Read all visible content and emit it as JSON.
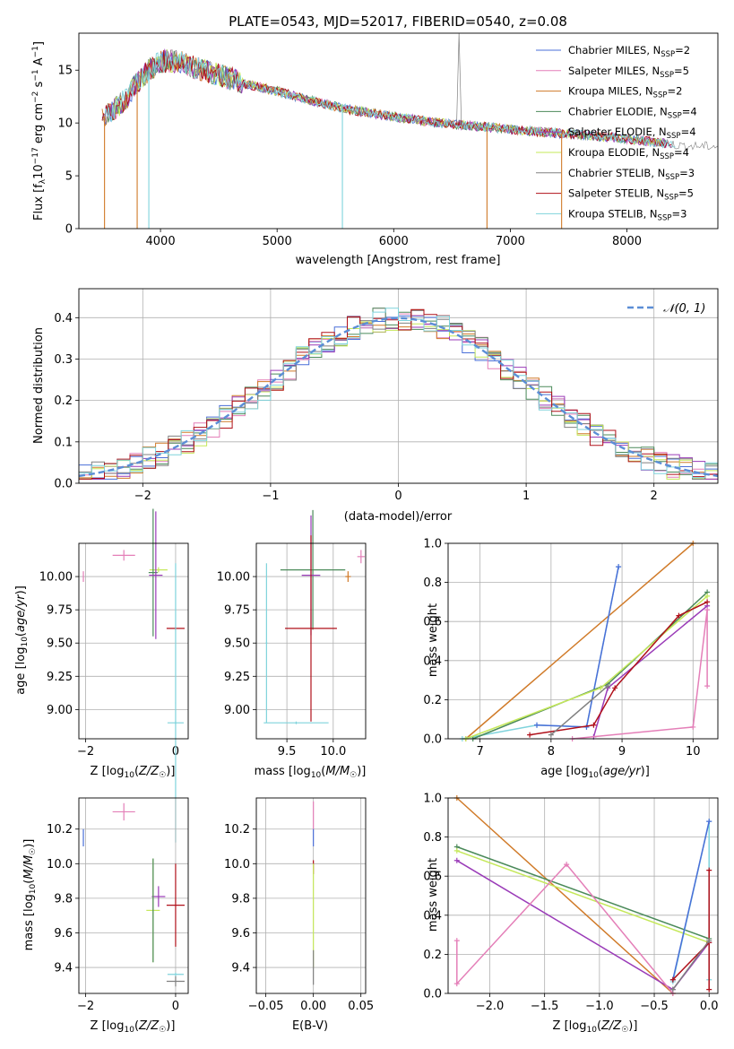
{
  "colors": {
    "chabrier_miles": "#4a6fd8",
    "salpeter_miles": "#e47fb8",
    "kroupa_miles": "#d07a28",
    "chabrier_elodie": "#4b8a5a",
    "salpeter_elodie": "#9a3bb8",
    "kroupa_elodie": "#c5e85a",
    "chabrier_stelib": "#808080",
    "salpeter_stelib": "#b0101a",
    "kroupa_stelib": "#7fd3dc",
    "normal": "#5b8ed6"
  },
  "legend1": [
    {
      "label": "Chabrier MILES, N",
      "sub": "SSP",
      "tail": "=2",
      "color": "chabrier_miles"
    },
    {
      "label": "Salpeter MILES, N",
      "sub": "SSP",
      "tail": "=5",
      "color": "salpeter_miles"
    },
    {
      "label": "Kroupa MILES, N",
      "sub": "SSP",
      "tail": "=2",
      "color": "kroupa_miles"
    },
    {
      "label": "Chabrier ELODIE, N",
      "sub": "SSP",
      "tail": "=4",
      "color": "chabrier_elodie"
    },
    {
      "label": "Salpeter ELODIE, N",
      "sub": "SSP",
      "tail": "=4",
      "color": "salpeter_elodie"
    },
    {
      "label": "Kroupa ELODIE, N",
      "sub": "SSP",
      "tail": "=4",
      "color": "kroupa_elodie"
    },
    {
      "label": "Chabrier STELIB, N",
      "sub": "SSP",
      "tail": "=3",
      "color": "chabrier_stelib"
    },
    {
      "label": "Salpeter STELIB, N",
      "sub": "SSP",
      "tail": "=5",
      "color": "salpeter_stelib"
    },
    {
      "label": "Kroupa STELIB, N",
      "sub": "SSP",
      "tail": "=3",
      "color": "kroupa_stelib"
    }
  ],
  "legend2": {
    "label": "𝒩(0, 1)"
  },
  "chart_data": [
    {
      "id": "spectrum",
      "type": "line",
      "title": "PLATE=0543, MJD=52017, FIBERID=0540, z=0.08",
      "xlabel": "wavelength [Angstrom, rest frame]",
      "ylabel": "Flux [f_λ 10^-17 erg cm^-2 s^-1 A^-1]",
      "xlim": [
        3300,
        8780
      ],
      "ylim": [
        0,
        18.5
      ],
      "xticks": [
        4000,
        5000,
        6000,
        7000,
        8000
      ],
      "yticks": [
        0,
        5,
        10,
        15
      ],
      "grid": false,
      "legend": "upper right",
      "continuum": {
        "x": [
          3500,
          3600,
          3700,
          3800,
          3900,
          4000,
          4100,
          4200,
          4300,
          4500,
          4700,
          5000,
          5300,
          5600,
          6000,
          6400,
          6800,
          7200,
          7600,
          8000,
          8300,
          8500
        ],
        "y": [
          10.5,
          11.3,
          12.2,
          13.8,
          15.0,
          15.8,
          15.9,
          15.7,
          15.2,
          14.6,
          13.8,
          13.0,
          12.1,
          11.3,
          10.6,
          10.0,
          9.6,
          9.2,
          8.9,
          8.5,
          8.1,
          7.8
        ]
      }
    },
    {
      "id": "residuals",
      "type": "line",
      "xlabel": "(data-model)/error",
      "ylabel": "Normed distribution",
      "xlim": [
        -2.5,
        2.5
      ],
      "ylim": [
        0,
        0.47
      ],
      "xticks": [
        -2,
        -1,
        0,
        1,
        2
      ],
      "yticks": [
        0.0,
        0.1,
        0.2,
        0.3,
        0.4
      ],
      "grid": true,
      "legend": "upper right",
      "series": [
        {
          "name": "𝒩(0, 1)",
          "mu": 0,
          "sigma": 1
        }
      ]
    },
    {
      "id": "age_vs_z",
      "type": "scatter",
      "xlabel": "Z [log10(Z/Z☉)]",
      "ylabel": "age [log10(age/yr)]",
      "xlim": [
        -2.15,
        0.28
      ],
      "ylim": [
        8.78,
        10.25
      ],
      "xticks": [
        -2,
        0
      ],
      "yticks": [
        9.0,
        9.25,
        9.5,
        9.75,
        10.0
      ],
      "grid": true,
      "errorbars": [
        {
          "c": "salpeter_miles",
          "x": -2.05,
          "y": 10.0,
          "xe": 0.01,
          "ye": 0.04
        },
        {
          "c": "salpeter_miles",
          "x": -1.15,
          "y": 10.16,
          "xe": 0.25,
          "ye": 0.04
        },
        {
          "c": "kroupa_elodie",
          "x": -0.38,
          "y": 10.05,
          "xe": 0.2,
          "ye": 0.02
        },
        {
          "c": "chabrier_elodie",
          "x": -0.5,
          "y": 10.03,
          "xe": 0.1,
          "ye": 0.48
        },
        {
          "c": "salpeter_elodie",
          "x": -0.44,
          "y": 10.01,
          "xe": 0.15,
          "ye": 0.48
        },
        {
          "c": "salpeter_stelib",
          "x": 0.0,
          "y": 9.61,
          "xe": 0.2,
          "ye": 0.01
        },
        {
          "c": "kroupa_stelib",
          "x": 0.0,
          "y": 9.05,
          "xe": 0.01,
          "ye": 1.05
        },
        {
          "c": "kroupa_stelib",
          "x": 0.0,
          "y": 8.9,
          "xe": 0.18,
          "ye": 0.01
        }
      ]
    },
    {
      "id": "age_vs_mass",
      "type": "scatter",
      "xlabel": "mass [log10(M/M☉)]",
      "ylabel": "",
      "xlim": [
        9.17,
        10.35
      ],
      "ylim": [
        8.78,
        10.25
      ],
      "xticks": [
        9.5,
        10.0
      ],
      "yticks": [
        9.0,
        9.25,
        9.5,
        9.75,
        10.0
      ],
      "grid": true,
      "errorbars": [
        {
          "c": "salpeter_miles",
          "x": 10.3,
          "y": 10.15,
          "xe": 0.04,
          "ye": 0.05
        },
        {
          "c": "kroupa_miles",
          "x": 10.16,
          "y": 10.0,
          "xe": 0.03,
          "ye": 0.04
        },
        {
          "c": "kroupa_stelib",
          "x": 9.28,
          "y": 9.5,
          "xe": 0.01,
          "ye": 0.6
        },
        {
          "c": "chabrier_elodie",
          "x": 9.78,
          "y": 10.05,
          "xe": 0.35,
          "ye": 0.45
        },
        {
          "c": "salpeter_elodie",
          "x": 9.76,
          "y": 10.01,
          "xe": 0.1,
          "ye": 0.45
        },
        {
          "c": "salpeter_stelib",
          "x": 9.76,
          "y": 9.61,
          "xe": 0.28,
          "ye": 0.7
        },
        {
          "c": "kroupa_stelib",
          "x": 9.6,
          "y": 8.9,
          "xe": 0.35,
          "ye": 0.01
        }
      ]
    },
    {
      "id": "weight_vs_age",
      "type": "line",
      "xlabel": "age [log10(age/yr)]",
      "ylabel": "mass weight",
      "xlim": [
        6.55,
        10.35
      ],
      "ylim": [
        0,
        1.0
      ],
      "xticks": [
        7,
        8,
        9,
        10
      ],
      "yticks": [
        0.0,
        0.2,
        0.4,
        0.6,
        0.8,
        1.0
      ],
      "grid": true,
      "series": [
        {
          "c": "kroupa_miles",
          "x": [
            6.8,
            10.0
          ],
          "y": [
            0.0,
            1.0
          ]
        },
        {
          "c": "kroupa_stelib",
          "x": [
            6.75,
            7.8,
            8.5,
            8.95
          ],
          "y": [
            0.0,
            0.07,
            0.06,
            0.88
          ]
        },
        {
          "c": "chabrier_miles",
          "x": [
            7.8,
            8.5,
            8.95
          ],
          "y": [
            0.07,
            0.06,
            0.88
          ]
        },
        {
          "c": "chabrier_elodie",
          "x": [
            6.9,
            8.8,
            10.2
          ],
          "y": [
            0.0,
            0.28,
            0.75
          ]
        },
        {
          "c": "kroupa_elodie",
          "x": [
            6.8,
            8.7,
            10.2
          ],
          "y": [
            0.0,
            0.26,
            0.73
          ]
        },
        {
          "c": "salpeter_elodie",
          "x": [
            8.6,
            8.8,
            10.2
          ],
          "y": [
            0.01,
            0.26,
            0.68
          ]
        },
        {
          "c": "salpeter_stelib",
          "x": [
            7.7,
            8.6,
            8.9,
            9.8,
            10.2
          ],
          "y": [
            0.02,
            0.07,
            0.26,
            0.63,
            0.7
          ]
        },
        {
          "c": "chabrier_stelib",
          "x": [
            8.0,
            8.8
          ],
          "y": [
            0.02,
            0.27
          ]
        },
        {
          "c": "salpeter_miles",
          "x": [
            8.3,
            10.0,
            10.2,
            10.2
          ],
          "y": [
            0.0,
            0.06,
            0.66,
            0.27
          ]
        }
      ]
    },
    {
      "id": "mass_vs_z",
      "type": "scatter",
      "xlabel": "Z [log10(Z/Z☉)]",
      "ylabel": "mass [log10(M/M☉)]",
      "xlim": [
        -2.15,
        0.28
      ],
      "ylim": [
        9.25,
        10.38
      ],
      "xticks": [
        -2,
        0
      ],
      "yticks": [
        9.4,
        9.6,
        9.8,
        10.0,
        10.2
      ],
      "grid": true,
      "errorbars": [
        {
          "c": "chabrier_miles",
          "x": -2.05,
          "y": 10.15,
          "xe": 0.01,
          "ye": 0.05
        },
        {
          "c": "salpeter_miles",
          "x": -1.15,
          "y": 10.3,
          "xe": 0.25,
          "ye": 0.05
        },
        {
          "c": "salpeter_elodie",
          "x": -0.38,
          "y": 9.81,
          "xe": 0.15,
          "ye": 0.06
        },
        {
          "c": "kroupa_elodie",
          "x": -0.5,
          "y": 9.73,
          "xe": 0.15,
          "ye": 0.3
        },
        {
          "c": "chabrier_elodie",
          "x": -0.5,
          "y": 9.73,
          "xe": 0.01,
          "ye": 0.3
        },
        {
          "c": "salpeter_stelib",
          "x": 0.0,
          "y": 9.76,
          "xe": 0.2,
          "ye": 0.24
        },
        {
          "c": "kroupa_stelib",
          "x": 0.0,
          "y": 9.36,
          "xe": 0.18,
          "ye": 0.01
        },
        {
          "c": "chabrier_stelib",
          "x": 0.0,
          "y": 9.32,
          "xe": 0.2,
          "ye": 0.03
        }
      ]
    },
    {
      "id": "mass_vs_ebv",
      "type": "scatter",
      "xlabel": "E(B-V)",
      "ylabel": "",
      "xlim": [
        -0.06,
        0.055
      ],
      "ylim": [
        9.25,
        10.38
      ],
      "xticks": [
        -0.05,
        0.0,
        0.05
      ],
      "yticks": [
        9.4,
        9.6,
        9.8,
        10.0,
        10.2
      ],
      "grid": true,
      "errorbars": [
        {
          "c": "salpeter_miles",
          "x": 0.0,
          "y": 10.28,
          "xe": 0.0,
          "ye": 0.08
        },
        {
          "c": "chabrier_miles",
          "x": 0.0,
          "y": 10.15,
          "xe": 0.0,
          "ye": 0.05
        },
        {
          "c": "salpeter_stelib",
          "x": 0.0,
          "y": 9.98,
          "xe": 0.0,
          "ye": 0.04
        },
        {
          "c": "kroupa_elodie",
          "x": 0.0,
          "y": 9.7,
          "xe": 0.0,
          "ye": 0.3
        },
        {
          "c": "chabrier_stelib",
          "x": 0.0,
          "y": 9.4,
          "xe": 0.0,
          "ye": 0.1
        }
      ]
    },
    {
      "id": "weight_vs_z",
      "type": "line",
      "xlabel": "Z [log10(Z/Z☉)]",
      "ylabel": "mass weight",
      "xlim": [
        -2.38,
        0.08
      ],
      "ylim": [
        0,
        1.0
      ],
      "xticks": [
        -2.0,
        -1.5,
        -1.0,
        -0.5,
        0.0
      ],
      "yticks": [
        0.0,
        0.2,
        0.4,
        0.6,
        0.8,
        1.0
      ],
      "grid": true,
      "series": [
        {
          "c": "kroupa_miles",
          "x": [
            -2.3,
            -0.33
          ],
          "y": [
            1.0,
            0.0
          ]
        },
        {
          "c": "chabrier_elodie",
          "x": [
            -2.3,
            0.0
          ],
          "y": [
            0.75,
            0.28
          ]
        },
        {
          "c": "kroupa_elodie",
          "x": [
            -2.3,
            0.0
          ],
          "y": [
            0.73,
            0.26
          ]
        },
        {
          "c": "salpeter_elodie",
          "x": [
            -2.3,
            -0.33,
            0.0
          ],
          "y": [
            0.68,
            0.02,
            0.26
          ]
        },
        {
          "c": "salpeter_miles",
          "x": [
            -2.3,
            -2.3,
            -1.3,
            -0.33
          ],
          "y": [
            0.27,
            0.05,
            0.66,
            0.0
          ]
        },
        {
          "c": "kroupa_stelib",
          "x": [
            -0.33,
            0.0,
            0.0
          ],
          "y": [
            0.06,
            0.88,
            0.07
          ]
        },
        {
          "c": "chabrier_miles",
          "x": [
            -0.33,
            0.0
          ],
          "y": [
            0.07,
            0.88
          ]
        },
        {
          "c": "salpeter_stelib",
          "x": [
            -0.33,
            0.0,
            0.0,
            0.0
          ],
          "y": [
            0.07,
            0.26,
            0.63,
            0.02
          ]
        },
        {
          "c": "chabrier_stelib",
          "x": [
            -0.33,
            0.0
          ],
          "y": [
            0.02,
            0.27
          ]
        }
      ]
    }
  ]
}
